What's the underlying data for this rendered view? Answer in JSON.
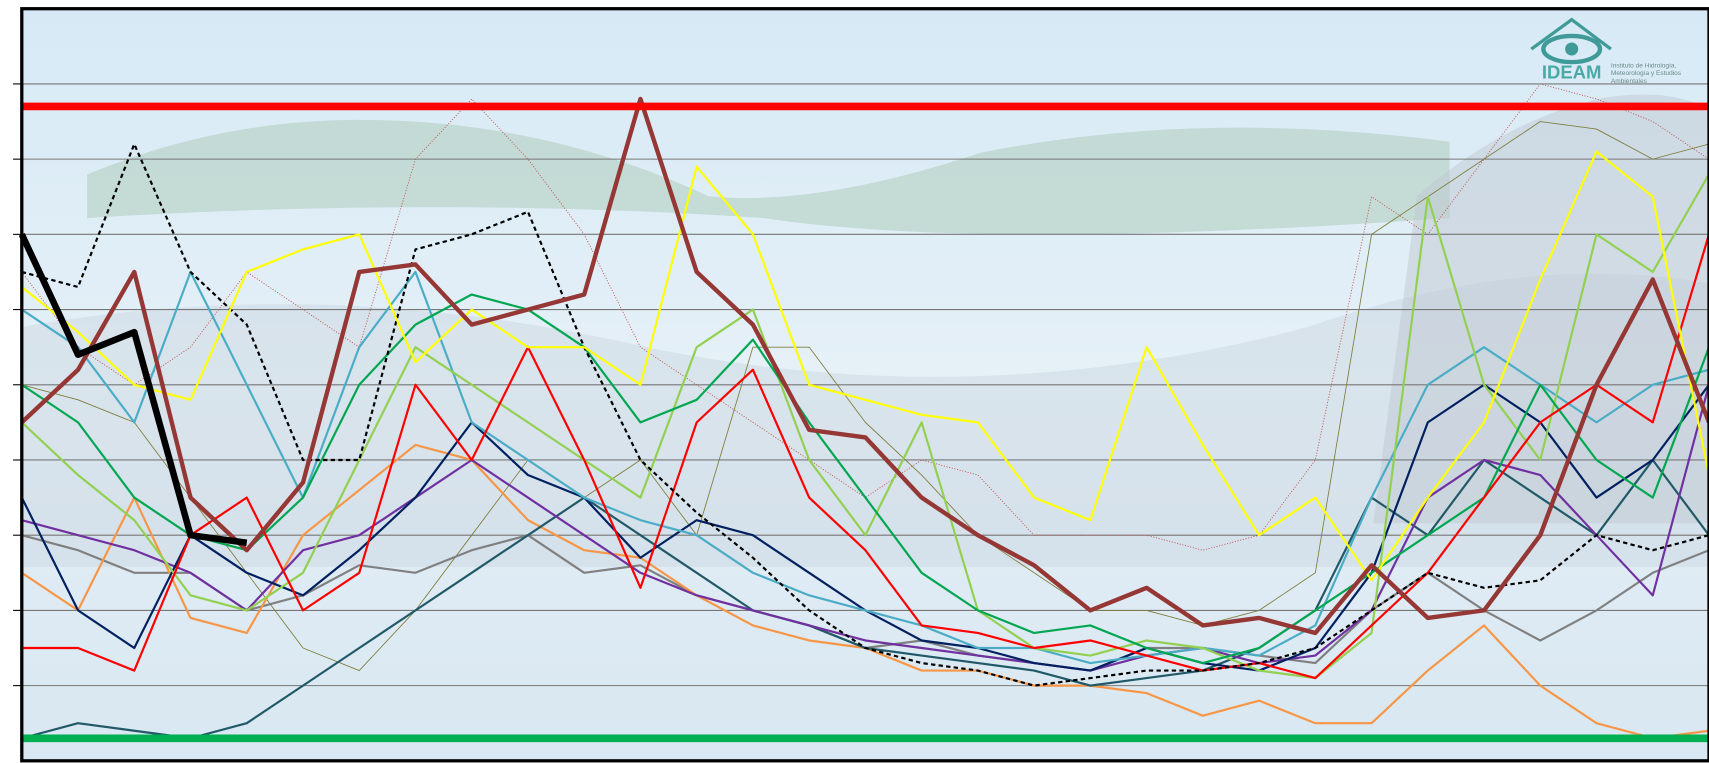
{
  "chart_data": {
    "type": "line",
    "logo": {
      "title": "IDEAM",
      "subtitle": "Instituto de Hidrología, Meteorología y Estudios Ambientales"
    },
    "x": [
      0,
      12,
      24,
      36,
      48,
      60,
      72,
      84,
      96,
      108,
      120,
      132,
      144,
      156,
      168,
      180,
      192,
      204,
      216,
      228,
      240,
      252,
      264,
      276,
      288,
      300,
      312,
      324,
      336,
      348,
      360
    ],
    "xlim": [
      0,
      360
    ],
    "ylim": [
      0,
      10
    ],
    "yticks": [
      1,
      2,
      3,
      4,
      5,
      6,
      7,
      8,
      9
    ],
    "grid": true,
    "thresholds": [
      {
        "value": 8.7,
        "color": "#ff0000"
      },
      {
        "value": 0.3,
        "color": "#00b050"
      }
    ],
    "series": [
      {
        "color": "#7f7f3f",
        "style": "thin",
        "values": [
          5.0,
          4.8,
          4.5,
          3.5,
          2.5,
          1.5,
          1.2,
          2.0,
          3.0,
          4.0,
          3.5,
          4.0,
          3.0,
          5.5,
          5.5,
          4.5,
          3.8,
          3.0,
          2.5,
          2.0,
          2.0,
          1.8,
          2.0,
          2.5,
          7.0,
          7.5,
          8.0,
          8.5,
          8.4,
          8.0,
          8.2
        ]
      },
      {
        "color": "#c0504d",
        "style": "dotted",
        "values": [
          6.5,
          5.5,
          5.0,
          5.5,
          6.5,
          6.0,
          5.5,
          8.0,
          8.8,
          8.0,
          7.0,
          5.5,
          5.0,
          4.5,
          4.0,
          3.5,
          4.0,
          3.8,
          3.0,
          3.0,
          3.0,
          2.8,
          3.0,
          4.0,
          7.5,
          7.0,
          8.0,
          9.0,
          8.8,
          8.5,
          8.0
        ]
      },
      {
        "color": "#808080",
        "style": "normal",
        "values": [
          3.0,
          2.8,
          2.5,
          2.5,
          2.0,
          2.2,
          2.6,
          2.5,
          2.8,
          3.0,
          2.5,
          2.6,
          2.2,
          2.0,
          1.8,
          1.5,
          1.6,
          1.4,
          1.3,
          1.2,
          1.5,
          1.5,
          1.4,
          1.3,
          2.0,
          2.5,
          2.0,
          1.6,
          2.0,
          2.5,
          2.8
        ]
      },
      {
        "color": "#f79646",
        "style": "normal",
        "values": [
          2.5,
          2.0,
          3.5,
          1.9,
          1.7,
          3.0,
          3.6,
          4.2,
          4.0,
          3.2,
          2.8,
          2.7,
          2.2,
          1.8,
          1.6,
          1.5,
          1.2,
          1.2,
          1.0,
          1.0,
          0.9,
          0.6,
          0.8,
          0.5,
          0.5,
          1.2,
          1.8,
          1.0,
          0.5,
          0.3,
          0.4
        ]
      },
      {
        "color": "#215968",
        "style": "normal",
        "values": [
          0.3,
          0.5,
          0.4,
          0.3,
          0.5,
          1.0,
          1.5,
          2.0,
          2.5,
          3.0,
          3.5,
          3.0,
          2.5,
          2.0,
          1.8,
          1.5,
          1.4,
          1.3,
          1.2,
          1.0,
          1.1,
          1.2,
          1.5,
          2.0,
          3.5,
          3.0,
          4.0,
          3.5,
          3.0,
          4.0,
          3.0
        ]
      },
      {
        "color": "#7030a0",
        "style": "normal",
        "values": [
          3.2,
          3.0,
          2.8,
          2.5,
          2.0,
          2.8,
          3.0,
          3.5,
          4.0,
          3.5,
          3.0,
          2.5,
          2.2,
          2.0,
          1.8,
          1.6,
          1.5,
          1.4,
          1.3,
          1.2,
          1.4,
          1.5,
          1.3,
          1.4,
          2.0,
          3.5,
          4.0,
          3.8,
          3.0,
          2.2,
          5.0
        ]
      },
      {
        "color": "#002060",
        "style": "normal",
        "values": [
          3.5,
          2.0,
          1.5,
          3.0,
          2.5,
          2.2,
          2.8,
          3.5,
          4.5,
          3.8,
          3.5,
          2.7,
          3.2,
          3.0,
          2.5,
          2.0,
          1.6,
          1.5,
          1.3,
          1.2,
          1.5,
          1.3,
          1.2,
          1.5,
          2.5,
          4.5,
          5.0,
          4.5,
          3.5,
          4.0,
          5.0
        ]
      },
      {
        "color": "#4bacc6",
        "style": "normal",
        "values": [
          6.0,
          5.5,
          4.5,
          6.5,
          5.0,
          3.5,
          5.5,
          6.5,
          4.5,
          4.0,
          3.5,
          3.2,
          3.0,
          2.5,
          2.2,
          2.0,
          1.8,
          1.5,
          1.5,
          1.3,
          1.4,
          1.5,
          1.4,
          1.8,
          3.5,
          5.0,
          5.5,
          5.0,
          4.5,
          5.0,
          5.2
        ]
      },
      {
        "color": "#92d050",
        "style": "normal",
        "values": [
          4.5,
          3.8,
          3.2,
          2.2,
          2.0,
          2.5,
          4.0,
          5.5,
          5.0,
          4.5,
          4.0,
          3.5,
          5.5,
          6.0,
          4.0,
          3.0,
          4.5,
          2.0,
          1.5,
          1.4,
          1.6,
          1.5,
          1.2,
          1.1,
          1.7,
          7.5,
          5.0,
          4.0,
          7.0,
          6.5,
          7.8
        ]
      },
      {
        "color": "#00a650",
        "style": "normal",
        "values": [
          5.0,
          4.5,
          3.5,
          3.0,
          2.8,
          3.5,
          5.0,
          5.8,
          6.2,
          6.0,
          5.5,
          4.5,
          4.8,
          5.6,
          4.5,
          3.5,
          2.5,
          2.0,
          1.7,
          1.8,
          1.5,
          1.3,
          1.5,
          2.0,
          2.5,
          3.0,
          3.5,
          5.0,
          4.0,
          3.5,
          5.5
        ]
      },
      {
        "color": "#ff0000",
        "style": "normal",
        "values": [
          1.5,
          1.5,
          1.2,
          3.0,
          3.5,
          2.0,
          2.5,
          5.0,
          4.0,
          5.5,
          4.0,
          2.3,
          4.5,
          5.2,
          3.5,
          2.8,
          1.8,
          1.7,
          1.5,
          1.6,
          1.4,
          1.2,
          1.3,
          1.1,
          1.8,
          2.5,
          3.5,
          4.5,
          5.0,
          4.5,
          7.0
        ]
      },
      {
        "color": "#000000",
        "style": "dashed",
        "values": [
          6.5,
          6.3,
          8.2,
          6.5,
          5.8,
          4.0,
          4.0,
          6.8,
          7.0,
          7.3,
          5.5,
          4.0,
          3.3,
          2.7,
          2.0,
          1.5,
          1.3,
          1.2,
          1.0,
          1.1,
          1.2,
          1.2,
          1.3,
          1.5,
          2.0,
          2.5,
          2.3,
          2.4,
          3.0,
          2.8,
          3.0
        ]
      },
      {
        "color": "#ffff00",
        "style": "normal",
        "values": [
          6.3,
          5.7,
          5.0,
          4.8,
          6.5,
          6.8,
          7.0,
          5.3,
          6.0,
          5.5,
          5.5,
          5.0,
          7.9,
          7.0,
          5.0,
          4.8,
          4.6,
          4.5,
          3.5,
          3.2,
          5.5,
          4.2,
          3.0,
          3.5,
          2.4,
          3.5,
          4.5,
          6.4,
          8.1,
          7.5,
          3.8
        ]
      },
      {
        "color": "#953735",
        "style": "thick",
        "values": [
          4.5,
          5.2,
          6.5,
          3.5,
          2.8,
          3.7,
          6.5,
          6.6,
          5.8,
          6.0,
          6.2,
          8.8,
          6.5,
          5.8,
          4.4,
          4.3,
          3.5,
          3.0,
          2.6,
          2.0,
          2.3,
          1.8,
          1.9,
          1.7,
          2.6,
          1.9,
          2.0,
          3.0,
          5.0,
          6.4,
          4.5
        ]
      },
      {
        "color": "#000000",
        "style": "heavy",
        "values": [
          7.0,
          5.4,
          5.7,
          3.0,
          2.9,
          null,
          null,
          null,
          null,
          null,
          null,
          null,
          null,
          null,
          null,
          null,
          null,
          null,
          null,
          null,
          null,
          null,
          null,
          null,
          null,
          null,
          null,
          null,
          null,
          null,
          null
        ]
      }
    ]
  }
}
